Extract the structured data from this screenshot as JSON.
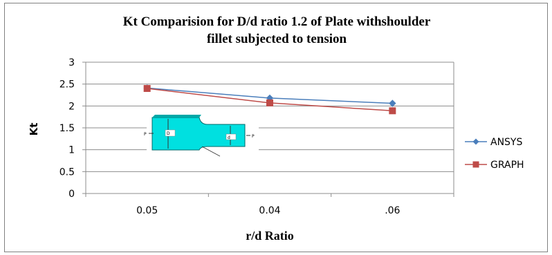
{
  "chart_data": {
    "type": "line",
    "title_line1": "Kt Comparision for D/d ratio 1.2 of Plate withshoulder",
    "title_line2": "fillet subjected to tension",
    "xlabel": "r/d Ratio",
    "ylabel": "Kt",
    "categories": [
      "0.05",
      "0.04",
      ".06"
    ],
    "ylim": [
      0,
      3
    ],
    "yticks": [
      "0",
      "0.5",
      "1",
      "1.5",
      "2",
      "2.5",
      "3"
    ],
    "grid": true,
    "legend_position": "right",
    "series": [
      {
        "name": "ANSYS",
        "values": [
          2.41,
          2.18,
          2.06
        ],
        "color": "#4a7ebb",
        "marker": "diamond"
      },
      {
        "name": "GRAPH",
        "values": [
          2.4,
          2.07,
          1.89
        ],
        "color": "#be4b48",
        "marker": "square"
      }
    ],
    "inset_labels": {
      "left_load": "P",
      "right_load": "P",
      "dim_d": "D",
      "dim_d2": "d"
    }
  }
}
